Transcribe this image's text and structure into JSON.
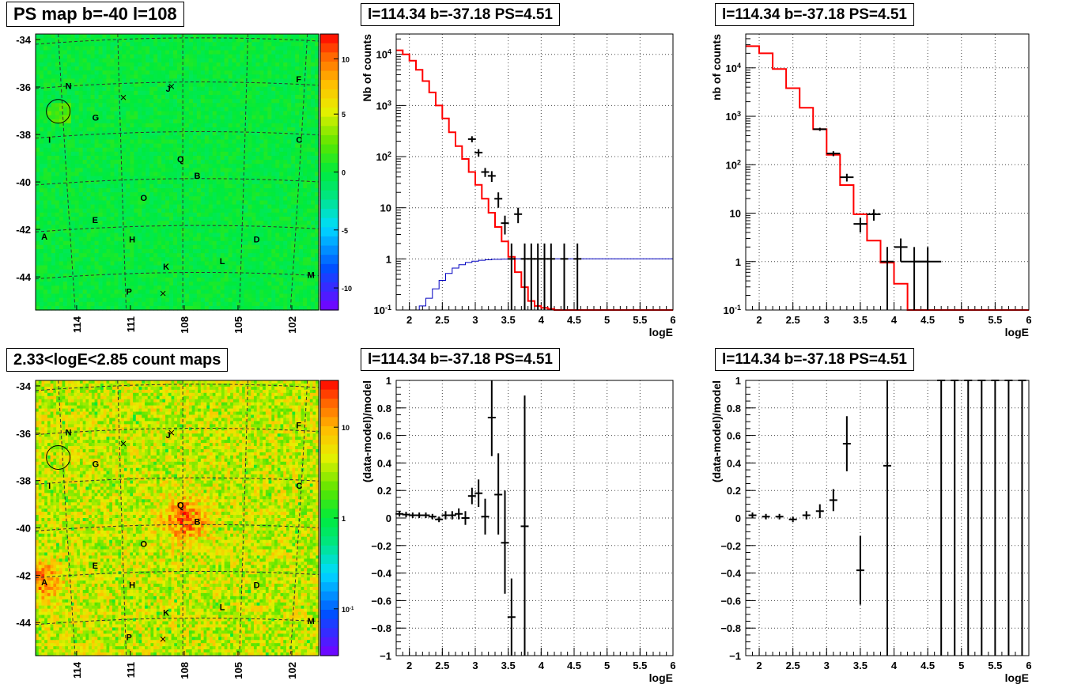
{
  "chart_data": [
    {
      "type": "heatmap",
      "title": "PS map b=-40 l=108",
      "xlabel": "",
      "ylabel": "",
      "x_ticks": [
        "114",
        "111",
        "108",
        "105",
        "102"
      ],
      "y_ticks": [
        "-34",
        "-36",
        "-38",
        "-40",
        "-42",
        "-44"
      ],
      "colorbar_ticks": [
        "10",
        "5",
        "0",
        "-5",
        "-10"
      ],
      "labels": [
        "N",
        "J",
        "F",
        "G",
        "I",
        "C",
        "Q",
        "B",
        "O",
        "E",
        "A",
        "H",
        "D",
        "K",
        "L",
        "M",
        "P"
      ]
    },
    {
      "type": "heatmap",
      "title": "2.33<logE<2.85 count maps",
      "xlabel": "",
      "ylabel": "",
      "x_ticks": [
        "114",
        "111",
        "108",
        "105",
        "102"
      ],
      "y_ticks": [
        "-34",
        "-36",
        "-38",
        "-40",
        "-42",
        "-44"
      ],
      "colorbar_ticks": [
        "10",
        "1",
        "10^-1"
      ],
      "labels": [
        "N",
        "J",
        "F",
        "G",
        "I",
        "C",
        "Q",
        "B",
        "O",
        "E",
        "A",
        "H",
        "D",
        "K",
        "L",
        "M",
        "P"
      ]
    },
    {
      "type": "line",
      "title": "l=114.34 b=-37.18 PS=4.51",
      "xlabel": "logE",
      "ylabel": "Nb of counts",
      "x_ticks": [
        "2",
        "2.5",
        "3",
        "3.5",
        "4",
        "4.5",
        "5",
        "5.5",
        "6"
      ],
      "y_ticks": [
        "10^4",
        "10^3",
        "10^2",
        "10",
        "1",
        "10^-1"
      ],
      "xlim": [
        1.8,
        6.0
      ],
      "ylim": [
        0.1,
        25000
      ],
      "log_y": true,
      "grid": true,
      "series": [
        {
          "kind": "step",
          "color": "#ff0000",
          "x": [
            1.8,
            1.9,
            2.0,
            2.1,
            2.2,
            2.3,
            2.4,
            2.5,
            2.6,
            2.7,
            2.8,
            2.9,
            3.0,
            3.1,
            3.2,
            3.3,
            3.4,
            3.5,
            3.6,
            3.7,
            3.8,
            3.9,
            4.0,
            4.1,
            4.2,
            6.0
          ],
          "y": [
            12000,
            10000,
            7500,
            5000,
            3000,
            1800,
            1000,
            560,
            300,
            160,
            90,
            50,
            28,
            15,
            8,
            4.2,
            2.2,
            1.1,
            0.55,
            0.28,
            0.15,
            0.12,
            0.11,
            0.105,
            0.1,
            0.1
          ]
        },
        {
          "kind": "step",
          "color": "#0000c0",
          "x": [
            1.8,
            2.15,
            2.25,
            2.35,
            2.45,
            2.55,
            2.65,
            2.75,
            2.85,
            2.95,
            3.05,
            3.15,
            3.25,
            3.4,
            3.6,
            6.0
          ],
          "y": [
            0.1,
            0.12,
            0.17,
            0.26,
            0.38,
            0.52,
            0.66,
            0.77,
            0.85,
            0.9,
            0.94,
            0.96,
            0.98,
            0.99,
            1.0,
            1.0
          ]
        },
        {
          "kind": "points",
          "color": "#000000",
          "x": [
            2.95,
            3.05,
            3.15,
            3.25,
            3.35,
            3.45,
            3.55,
            3.65,
            3.75,
            3.85,
            3.95,
            4.05,
            4.15,
            4.35,
            4.55
          ],
          "y": [
            220,
            120,
            50,
            42,
            15,
            5,
            1,
            7.5,
            1,
            1,
            1,
            1,
            1,
            1,
            1
          ],
          "ylow": [
            190,
            100,
            40,
            32,
            10,
            3,
            0.1,
            5,
            0.1,
            0.1,
            0.1,
            0.1,
            0.1,
            0.1,
            0.1
          ],
          "yhigh": [
            250,
            140,
            60,
            52,
            20,
            7,
            2,
            10,
            2,
            2,
            2,
            2,
            2,
            2,
            2
          ]
        }
      ]
    },
    {
      "type": "line",
      "title": "l=114.34 b=-37.18 PS=4.51",
      "xlabel": "logE",
      "ylabel": "nb of counts",
      "x_ticks": [
        "2",
        "2.5",
        "3",
        "3.5",
        "4",
        "4.5",
        "5",
        "5.5",
        "6"
      ],
      "y_ticks": [
        "10^4",
        "10^3",
        "10^2",
        "10",
        "1",
        "10^-1"
      ],
      "xlim": [
        1.8,
        6.0
      ],
      "ylim": [
        0.1,
        50000
      ],
      "log_y": true,
      "grid": true,
      "series": [
        {
          "kind": "step",
          "color": "#ff0000",
          "x": [
            1.8,
            2.0,
            2.2,
            2.4,
            2.6,
            2.8,
            3.0,
            3.2,
            3.4,
            3.6,
            3.8,
            4.0,
            4.2,
            6.0
          ],
          "y": [
            28000,
            20000,
            9500,
            3800,
            1500,
            540,
            160,
            38,
            9.5,
            2.7,
            0.95,
            0.35,
            0.1,
            0.1
          ]
        },
        {
          "kind": "points",
          "color": "#000000",
          "x": [
            2.9,
            3.1,
            3.3,
            3.5,
            3.7,
            3.9,
            4.1,
            4.3,
            4.5
          ],
          "y": [
            540,
            170,
            55,
            6,
            9.5,
            1,
            2,
            1,
            1
          ],
          "ylow": [
            500,
            150,
            45,
            4,
            7,
            0.1,
            1,
            0.1,
            0.1
          ],
          "yhigh": [
            580,
            190,
            65,
            8,
            12,
            2,
            3,
            2,
            2
          ],
          "xerr": [
            0.1,
            0.1,
            0.1,
            0.1,
            0.1,
            0.1,
            0.1,
            0.2,
            0.2
          ]
        }
      ]
    },
    {
      "type": "scatter",
      "title": "l=114.34 b=-37.18 PS=4.51",
      "xlabel": "logE",
      "ylabel": "(data-model)/model",
      "x_ticks": [
        "2",
        "2.5",
        "3",
        "3.5",
        "4",
        "4.5",
        "5",
        "5.5",
        "6"
      ],
      "y_ticks": [
        "1",
        "0.8",
        "0.6",
        "0.4",
        "0.2",
        "0",
        "−0.2",
        "−0.4",
        "−0.6",
        "−0.8",
        "−1"
      ],
      "xlim": [
        1.8,
        6.0
      ],
      "ylim": [
        -1,
        1
      ],
      "grid": true,
      "series": [
        {
          "color": "#000000",
          "x": [
            1.85,
            1.95,
            2.05,
            2.15,
            2.25,
            2.35,
            2.45,
            2.55,
            2.65,
            2.75,
            2.85,
            2.95,
            3.05,
            3.15,
            3.25,
            3.35,
            3.45,
            3.55,
            3.75
          ],
          "y": [
            0.03,
            0.025,
            0.02,
            0.02,
            0.02,
            0.01,
            -0.01,
            0.02,
            0.02,
            0.03,
            0.0,
            0.16,
            0.18,
            0.01,
            0.73,
            0.17,
            -0.18,
            -0.72,
            -0.06
          ],
          "ylow": [
            0.01,
            0.005,
            0.0,
            0.0,
            0.0,
            -0.01,
            -0.03,
            -0.01,
            -0.01,
            -0.01,
            -0.05,
            0.1,
            0.08,
            -0.12,
            0.45,
            -0.12,
            -0.55,
            -1.0,
            -1.0
          ],
          "yhigh": [
            0.05,
            0.045,
            0.04,
            0.04,
            0.04,
            0.03,
            0.01,
            0.05,
            0.05,
            0.07,
            0.05,
            0.22,
            0.28,
            0.14,
            1.0,
            0.47,
            0.2,
            -0.44,
            0.89
          ]
        }
      ]
    },
    {
      "type": "scatter",
      "title": "l=114.34 b=-37.18 PS=4.51",
      "xlabel": "logE",
      "ylabel": "(data-model)/model",
      "x_ticks": [
        "2",
        "2.5",
        "3",
        "3.5",
        "4",
        "4.5",
        "5",
        "5.5",
        "6"
      ],
      "y_ticks": [
        "1",
        "0.8",
        "0.6",
        "0.4",
        "0.2",
        "0",
        "−0.2",
        "−0.4",
        "−0.6",
        "−0.8",
        "−1"
      ],
      "xlim": [
        1.8,
        6.0
      ],
      "ylim": [
        -1,
        1
      ],
      "grid": true,
      "series": [
        {
          "color": "#000000",
          "x": [
            1.9,
            2.1,
            2.3,
            2.5,
            2.7,
            2.9,
            3.1,
            3.3,
            3.5,
            3.9,
            4.7,
            4.9,
            5.1,
            5.3,
            5.5,
            5.7,
            5.9
          ],
          "y": [
            0.02,
            0.01,
            0.01,
            -0.01,
            0.02,
            0.05,
            0.13,
            0.54,
            -0.38,
            0.38,
            1.0,
            1.0,
            1.0,
            1.0,
            1.0,
            1.0,
            1.0
          ],
          "ylow": [
            0.0,
            -0.01,
            -0.01,
            -0.03,
            -0.01,
            0.0,
            0.05,
            0.34,
            -0.63,
            -1.0,
            -1.0,
            -1.0,
            -1.0,
            -1.0,
            -1.0,
            -1.0,
            -1.0
          ],
          "yhigh": [
            0.04,
            0.03,
            0.03,
            0.01,
            0.05,
            0.1,
            0.21,
            0.74,
            -0.13,
            1.0,
            1.0,
            1.0,
            1.0,
            1.0,
            1.0,
            1.0,
            1.0
          ]
        }
      ]
    }
  ]
}
